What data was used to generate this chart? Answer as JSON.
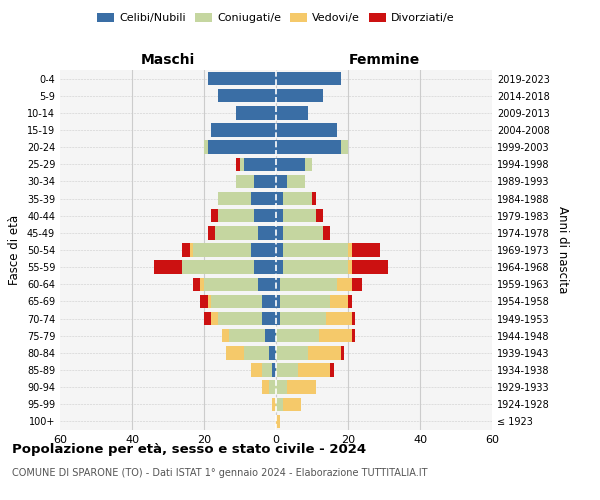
{
  "age_groups": [
    "100+",
    "95-99",
    "90-94",
    "85-89",
    "80-84",
    "75-79",
    "70-74",
    "65-69",
    "60-64",
    "55-59",
    "50-54",
    "45-49",
    "40-44",
    "35-39",
    "30-34",
    "25-29",
    "20-24",
    "15-19",
    "10-14",
    "5-9",
    "0-4"
  ],
  "birth_years": [
    "≤ 1923",
    "1924-1928",
    "1929-1933",
    "1934-1938",
    "1939-1943",
    "1944-1948",
    "1949-1953",
    "1954-1958",
    "1959-1963",
    "1964-1968",
    "1969-1973",
    "1974-1978",
    "1979-1983",
    "1984-1988",
    "1989-1993",
    "1994-1998",
    "1999-2003",
    "2004-2008",
    "2009-2013",
    "2014-2018",
    "2019-2023"
  ],
  "colors": {
    "celibe": "#3a6ea5",
    "coniugato": "#c5d6a0",
    "vedovo": "#f5c96a",
    "divorziato": "#cc1111"
  },
  "maschi": {
    "celibe": [
      0,
      0,
      0,
      1,
      2,
      3,
      4,
      4,
      5,
      6,
      7,
      5,
      6,
      7,
      6,
      9,
      19,
      18,
      11,
      16,
      19
    ],
    "coniugato": [
      0,
      0,
      2,
      3,
      7,
      10,
      12,
      14,
      15,
      20,
      16,
      12,
      10,
      9,
      5,
      1,
      1,
      0,
      0,
      0,
      0
    ],
    "vedovo": [
      0,
      1,
      2,
      3,
      5,
      2,
      2,
      1,
      1,
      0,
      1,
      0,
      0,
      0,
      0,
      0,
      0,
      0,
      0,
      0,
      0
    ],
    "divorziato": [
      0,
      0,
      0,
      0,
      0,
      0,
      2,
      2,
      2,
      8,
      2,
      2,
      2,
      0,
      0,
      1,
      0,
      0,
      0,
      0,
      0
    ]
  },
  "femmine": {
    "nubile": [
      0,
      0,
      0,
      0,
      0,
      0,
      1,
      1,
      1,
      2,
      2,
      2,
      2,
      2,
      3,
      8,
      18,
      17,
      9,
      13,
      18
    ],
    "coniugata": [
      0,
      2,
      3,
      6,
      9,
      12,
      13,
      14,
      16,
      18,
      18,
      11,
      9,
      8,
      5,
      2,
      2,
      0,
      0,
      0,
      0
    ],
    "vedova": [
      1,
      5,
      8,
      9,
      9,
      9,
      7,
      5,
      4,
      1,
      1,
      0,
      0,
      0,
      0,
      0,
      0,
      0,
      0,
      0,
      0
    ],
    "divorziata": [
      0,
      0,
      0,
      1,
      1,
      1,
      1,
      1,
      3,
      10,
      8,
      2,
      2,
      1,
      0,
      0,
      0,
      0,
      0,
      0,
      0
    ]
  },
  "xlim": 60,
  "title": "Popolazione per età, sesso e stato civile - 2024",
  "subtitle": "COMUNE DI SPARONE (TO) - Dati ISTAT 1° gennaio 2024 - Elaborazione TUTTITALIA.IT",
  "xlabel_maschi": "Maschi",
  "xlabel_femmine": "Femmine",
  "ylabel": "Fasce di età",
  "ylabel_right": "Anni di nascita",
  "legend_labels": [
    "Celibi/Nubili",
    "Coniugati/e",
    "Vedovi/e",
    "Divorziati/e"
  ],
  "bg_color": "#f5f5f5",
  "grid_color": "#cccccc"
}
